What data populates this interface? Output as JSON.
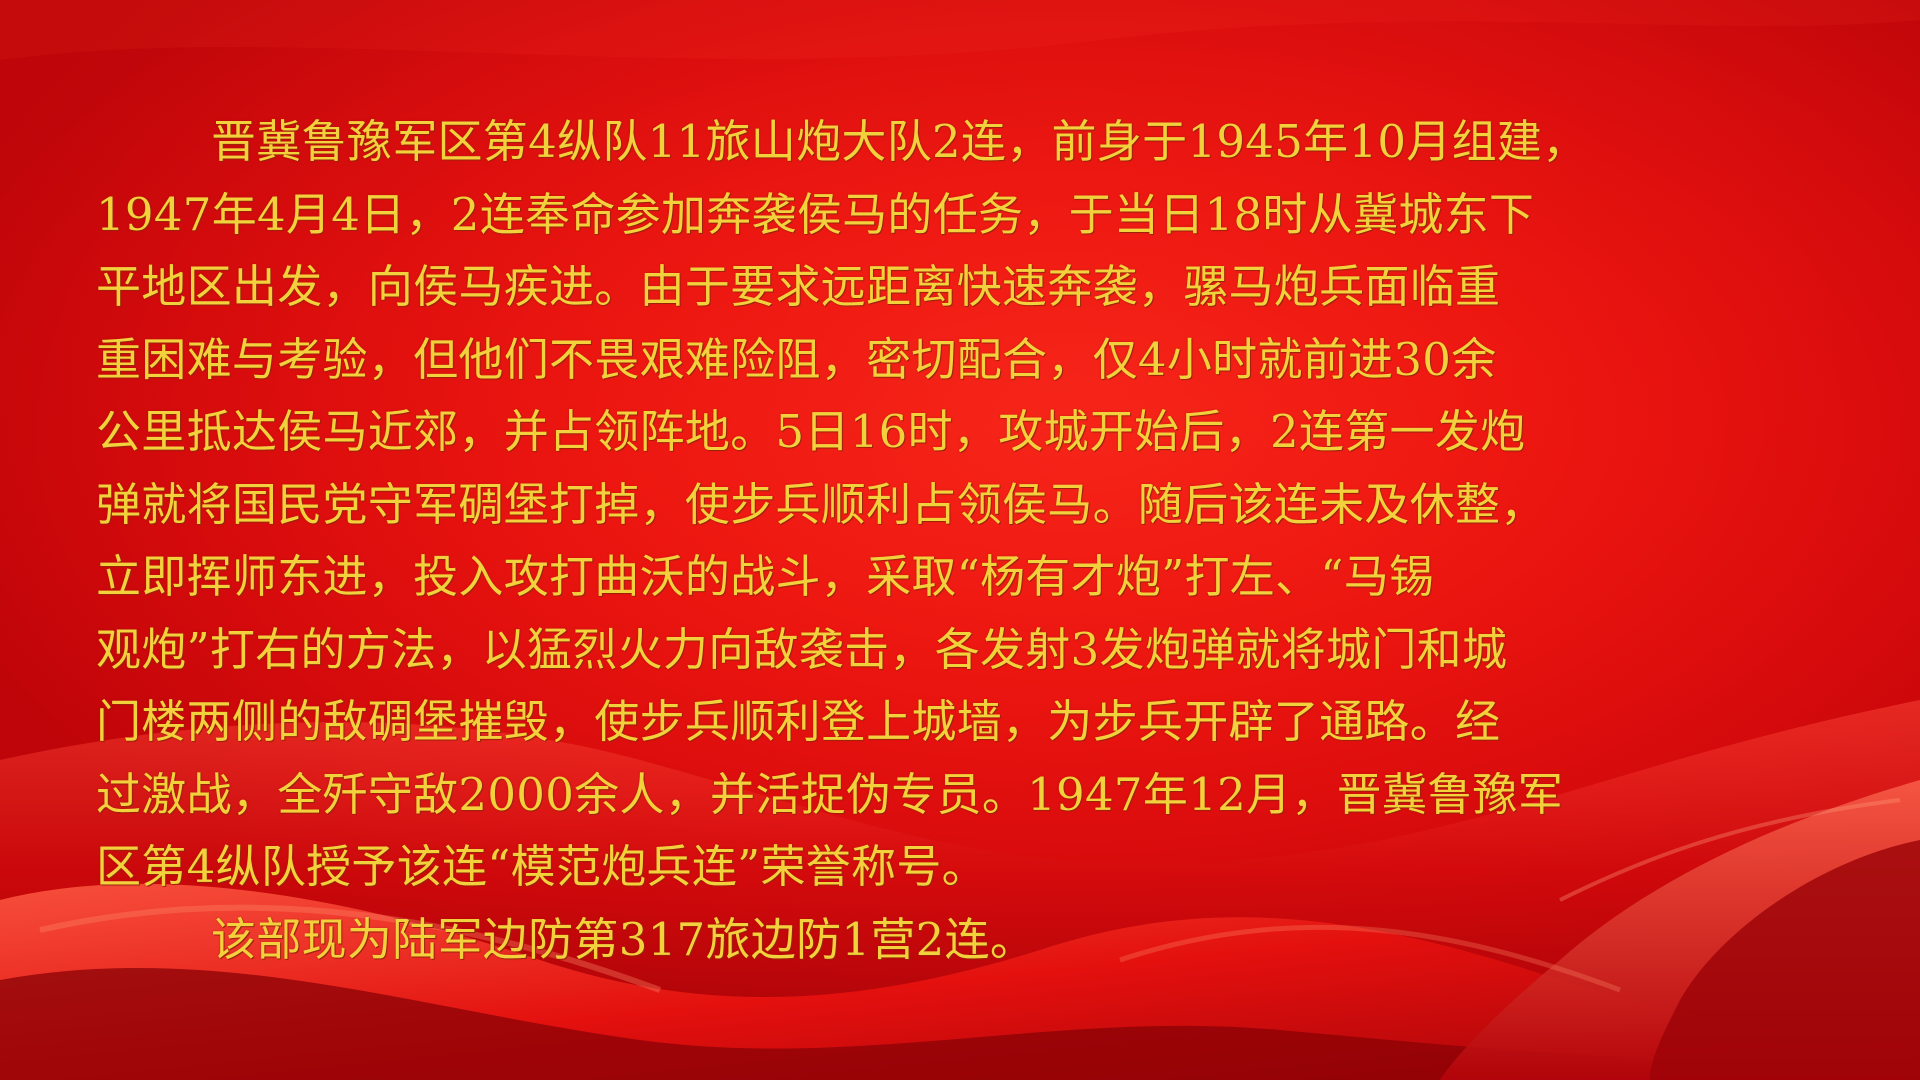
{
  "slide": {
    "paragraphs": [
      {
        "lines": [
          "晋冀鲁豫军区第4纵队11旅山炮大队2连，前身于1945年10月组建，",
          "1947年4月4日，2连奉命参加奔袭侯马的任务，于当日18时从冀城东下",
          "平地区出发，向侯马疾进。由于要求远距离快速奔袭，骡马炮兵面临重",
          "重困难与考验，但他们不畏艰难险阻，密切配合，仅4小时就前进30余",
          "公里抵达侯马近郊，并占领阵地。5日16时，攻城开始后，2连第一发炮",
          "弹就将国民党守军碉堡打掉，使步兵顺利占领侯马。随后该连未及休整，",
          "立即挥师东进，投入攻打曲沃的战斗，采取“杨有才炮”打左、“马锡",
          "观炮”打右的方法，以猛烈火力向敌袭击，各发射3发炮弹就将城门和城",
          "门楼两侧的敌碉堡摧毁，使步兵顺利登上城墙，为步兵开辟了通路。经",
          "过激战，全歼守敌2000余人，并活捉伪专员。1947年12月，晋冀鲁豫军",
          "区第4纵队授予该连“模范炮兵连”荣誉称号。"
        ]
      },
      {
        "lines": [
          "该部现为陆军边防第317旅边防1营2连。"
        ]
      }
    ]
  }
}
